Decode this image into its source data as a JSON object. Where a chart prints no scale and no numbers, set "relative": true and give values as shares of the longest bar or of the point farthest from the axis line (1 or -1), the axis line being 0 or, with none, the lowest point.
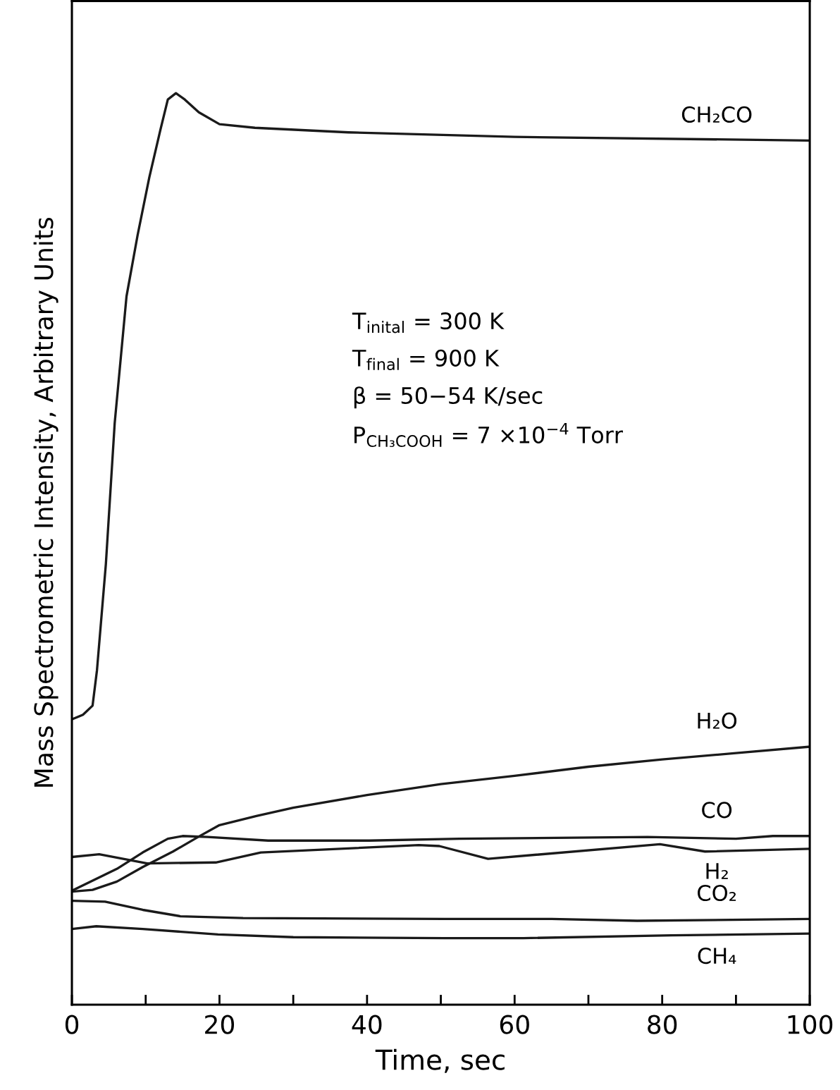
{
  "chart_data": {
    "type": "line",
    "relative": true,
    "xlabel": "Time, sec",
    "ylabel": "Mass Spectrometric Intensity, Arbitrary Units",
    "xlim": [
      0,
      100
    ],
    "xticks": [
      0,
      {
        "value": 10,
        "label": null
      },
      20,
      {
        "value": 30,
        "label": null
      },
      40,
      {
        "value": 50,
        "label": null
      },
      60,
      {
        "value": 70,
        "label": null
      },
      80,
      {
        "value": 90,
        "label": null
      },
      100
    ],
    "tick_labels": "x",
    "grid": false,
    "legend": false,
    "marker": "none",
    "line_style": "solid",
    "annotations": [
      "T$_{inital}$ = 300 K",
      "T$_{final}$ = 900 K",
      "β = 50−54 K/sec",
      "P$_{CH₃COOH}$ = 7 ×10$^{−4}$ Torr"
    ],
    "series": [
      {
        "name": "CH₂CO",
        "color": "#1a1a1a",
        "x": [
          0,
          1.5,
          2.8,
          3.4,
          4.6,
          5.8,
          7.4,
          8.9,
          10.5,
          12,
          13,
          14.1,
          15.3,
          17.2,
          20,
          24.8,
          37.5,
          60,
          100
        ],
        "values": [
          0.313,
          0.318,
          0.328,
          0.367,
          0.483,
          0.638,
          0.777,
          0.844,
          0.908,
          0.96,
          0.993,
          1.0,
          0.993,
          0.979,
          0.966,
          0.962,
          0.957,
          0.952,
          0.948
        ]
      },
      {
        "name": "H₂O",
        "color": "#1a1a1a",
        "x": [
          0,
          2.8,
          6.1,
          9.6,
          13.7,
          17.1,
          20,
          25,
          30,
          40,
          50,
          60,
          70,
          80,
          90,
          100
        ],
        "values": [
          0.124,
          0.126,
          0.135,
          0.151,
          0.168,
          0.184,
          0.197,
          0.207,
          0.216,
          0.23,
          0.242,
          0.251,
          0.261,
          0.269,
          0.276,
          0.283
        ]
      },
      {
        "name": "CO",
        "color": "#1a1a1a",
        "x": [
          0,
          6.1,
          9.6,
          13,
          15,
          18.4,
          26.6,
          40.3,
          52.5,
          78,
          90,
          95,
          100
        ],
        "values": [
          0.125,
          0.149,
          0.167,
          0.182,
          0.185,
          0.184,
          0.18,
          0.18,
          0.182,
          0.184,
          0.182,
          0.185,
          0.185
        ]
      },
      {
        "name": "H₂",
        "color": "#1a1a1a",
        "x": [
          0,
          3.7,
          10.2,
          19.5,
          25.6,
          47,
          49.8,
          56.4,
          79.7,
          85.8,
          100
        ],
        "values": [
          0.162,
          0.165,
          0.155,
          0.156,
          0.167,
          0.175,
          0.174,
          0.16,
          0.176,
          0.168,
          0.171
        ]
      },
      {
        "name": "CO₂",
        "color": "#1a1a1a",
        "x": [
          0,
          4.5,
          9.6,
          14.7,
          23.2,
          50.5,
          65,
          76.6,
          100
        ],
        "values": [
          0.114,
          0.113,
          0.104,
          0.097,
          0.095,
          0.094,
          0.094,
          0.092,
          0.094
        ]
      },
      {
        "name": "CH₄",
        "color": "#1a1a1a",
        "x": [
          0,
          3.3,
          9.6,
          19.8,
          30,
          50.5,
          61.2,
          81.3,
          100
        ],
        "values": [
          0.083,
          0.086,
          0.083,
          0.077,
          0.074,
          0.073,
          0.073,
          0.076,
          0.078
        ]
      }
    ]
  }
}
